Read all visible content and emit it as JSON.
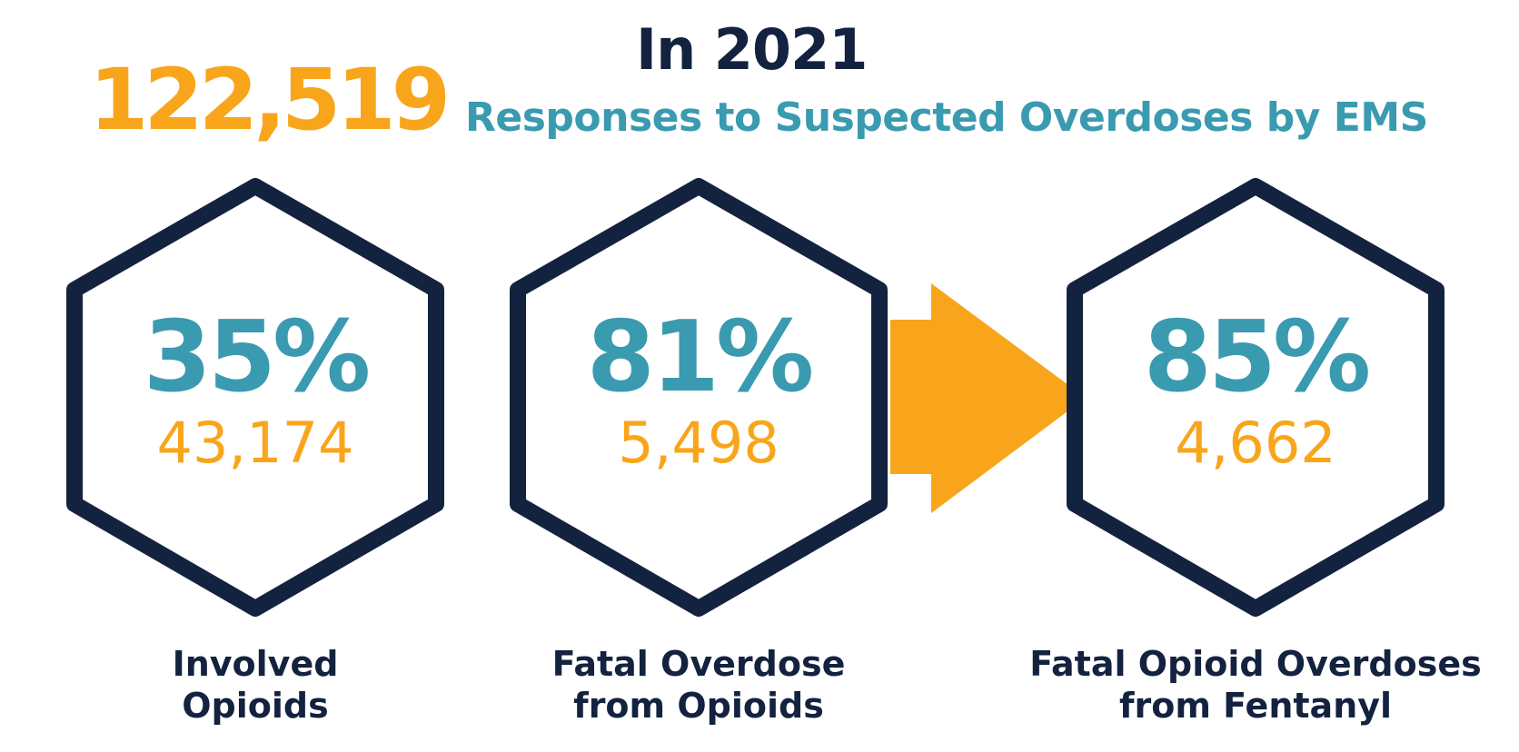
{
  "header": {
    "year_title": "In 2021",
    "total_number": "122,519",
    "total_label": "Responses to Suspected Overdoses by EMS"
  },
  "stats": [
    {
      "percent": "35%",
      "count": "43,174",
      "caption_line1": "Involved",
      "caption_line2": "Opioids"
    },
    {
      "percent": "81%",
      "count": "5,498",
      "caption_line1": "Fatal Overdose",
      "caption_line2": "from Opioids"
    },
    {
      "percent": "85%",
      "count": "4,662",
      "caption_line1": "Fatal Opioid Overdoses",
      "caption_line2": "from Fentanyl"
    }
  ],
  "colors": {
    "navy": "#13223f",
    "teal": "#3a9ab0",
    "orange": "#f9a51b"
  },
  "icons": {
    "arrow": "right-arrow-icon",
    "hexagon": "hexagon-outline-icon"
  }
}
